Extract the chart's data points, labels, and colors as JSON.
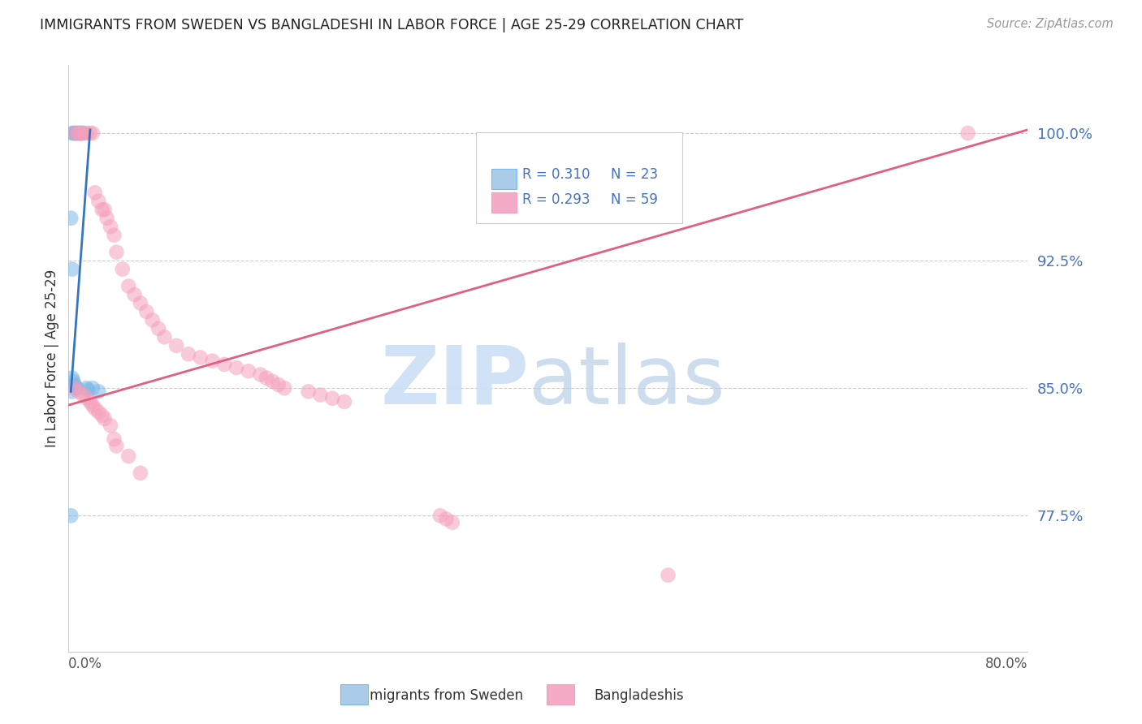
{
  "title": "IMMIGRANTS FROM SWEDEN VS BANGLADESHI IN LABOR FORCE | AGE 25-29 CORRELATION CHART",
  "source": "Source: ZipAtlas.com",
  "ylabel": "In Labor Force | Age 25-29",
  "yticks": [
    0.775,
    0.85,
    0.925,
    1.0
  ],
  "ytick_labels": [
    "77.5%",
    "85.0%",
    "92.5%",
    "100.0%"
  ],
  "xmin": 0.0,
  "xmax": 0.8,
  "ymin": 0.695,
  "ymax": 1.04,
  "legend_r_sweden": "R = 0.310",
  "legend_n_sweden": "N = 23",
  "legend_r_bangla": "R = 0.293",
  "legend_n_bangla": "N = 59",
  "sweden_color": "#7ab8e8",
  "bangla_color": "#f5a0bb",
  "sweden_line_color": "#3575c0",
  "bangla_line_color": "#e06080",
  "watermark_zip": "ZIP",
  "watermark_atlas": "atlas",
  "sweden_line_x0": 0.002,
  "sweden_line_y0": 0.848,
  "sweden_line_x1": 0.018,
  "sweden_line_y1": 1.002,
  "bangla_line_x0": 0.0,
  "bangla_line_y0": 0.84,
  "bangla_line_x1": 0.8,
  "bangla_line_y1": 1.002,
  "sweden_x": [
    0.003,
    0.004,
    0.005,
    0.006,
    0.007,
    0.008,
    0.009,
    0.01,
    0.011,
    0.012,
    0.002,
    0.003,
    0.02,
    0.025,
    0.003,
    0.004,
    0.005,
    0.006,
    0.007,
    0.003,
    0.015,
    0.016,
    0.002
  ],
  "sweden_y": [
    1.0,
    1.0,
    1.0,
    1.0,
    1.0,
    1.0,
    1.0,
    1.0,
    1.0,
    1.0,
    0.95,
    0.92,
    0.85,
    0.848,
    0.856,
    0.854,
    0.852,
    0.85,
    0.85,
    0.848,
    0.85,
    0.849,
    0.775
  ],
  "bangla_x": [
    0.005,
    0.008,
    0.01,
    0.012,
    0.015,
    0.018,
    0.02,
    0.022,
    0.025,
    0.028,
    0.03,
    0.032,
    0.035,
    0.038,
    0.04,
    0.045,
    0.05,
    0.055,
    0.06,
    0.065,
    0.07,
    0.075,
    0.08,
    0.09,
    0.1,
    0.11,
    0.12,
    0.13,
    0.14,
    0.15,
    0.16,
    0.165,
    0.17,
    0.175,
    0.18,
    0.2,
    0.21,
    0.22,
    0.23,
    0.005,
    0.008,
    0.012,
    0.015,
    0.018,
    0.02,
    0.022,
    0.025,
    0.028,
    0.03,
    0.035,
    0.038,
    0.04,
    0.05,
    0.06,
    0.31,
    0.315,
    0.32,
    0.5,
    0.75
  ],
  "bangla_y": [
    1.0,
    1.0,
    1.0,
    1.0,
    1.0,
    1.0,
    1.0,
    0.965,
    0.96,
    0.955,
    0.955,
    0.95,
    0.945,
    0.94,
    0.93,
    0.92,
    0.91,
    0.905,
    0.9,
    0.895,
    0.89,
    0.885,
    0.88,
    0.875,
    0.87,
    0.868,
    0.866,
    0.864,
    0.862,
    0.86,
    0.858,
    0.856,
    0.854,
    0.852,
    0.85,
    0.848,
    0.846,
    0.844,
    0.842,
    0.85,
    0.848,
    0.846,
    0.844,
    0.842,
    0.84,
    0.838,
    0.836,
    0.834,
    0.832,
    0.828,
    0.82,
    0.816,
    0.81,
    0.8,
    0.775,
    0.773,
    0.771,
    0.74,
    1.0
  ]
}
